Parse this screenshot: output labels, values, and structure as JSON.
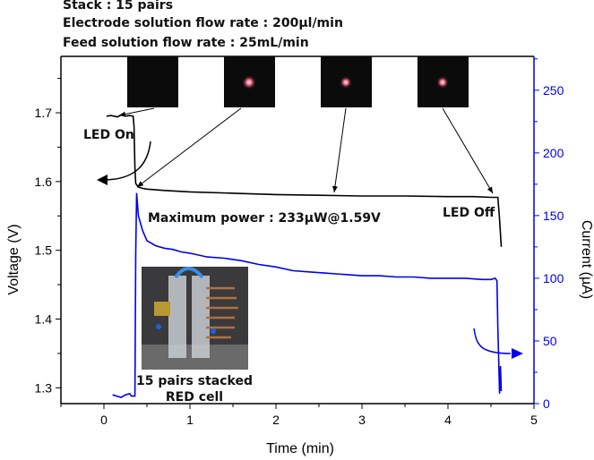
{
  "header": {
    "line1": "Stack : 15 pairs",
    "line2": "Electrode solution flow rate : 200µl/min",
    "line3": "Feed solution flow rate : 25mL/min"
  },
  "chart_data": {
    "type": "line",
    "xlabel": "Time (min)",
    "ylabel": "Voltage (V)",
    "y2label": "Current (µA)",
    "xlim": [
      -0.5,
      5
    ],
    "ylim": [
      1.277,
      1.782
    ],
    "y2lim": [
      0,
      277
    ],
    "xticks": [
      0,
      1,
      2,
      3,
      4,
      5
    ],
    "yticks": [
      1.3,
      1.4,
      1.5,
      1.6,
      1.7
    ],
    "y2ticks": [
      0,
      50,
      100,
      150,
      200,
      250
    ],
    "grid": false,
    "colors": {
      "voltage": "#000000",
      "current": "#0000ee"
    },
    "series": [
      {
        "axis": "left",
        "x": [
          0.03,
          0.08,
          0.12,
          0.16,
          0.2,
          0.25,
          0.3,
          0.34,
          0.35,
          0.36,
          0.37,
          0.4,
          0.45,
          0.5,
          0.7,
          1.0,
          1.5,
          2.0,
          2.5,
          3.0,
          3.5,
          4.0,
          4.3,
          4.5,
          4.58,
          4.6,
          4.62
        ],
        "y": [
          1.695,
          1.696,
          1.695,
          1.694,
          1.697,
          1.695,
          1.696,
          1.695,
          1.68,
          1.62,
          1.597,
          1.592,
          1.59,
          1.589,
          1.587,
          1.585,
          1.583,
          1.581,
          1.58,
          1.579,
          1.579,
          1.578,
          1.578,
          1.577,
          1.577,
          1.545,
          1.505
        ]
      },
      {
        "axis": "right",
        "x": [
          0.1,
          0.15,
          0.2,
          0.25,
          0.3,
          0.32,
          0.36,
          0.37,
          0.38,
          0.4,
          0.45,
          0.5,
          0.6,
          0.7,
          0.8,
          0.9,
          1.0,
          1.2,
          1.4,
          1.6,
          1.8,
          2.0,
          2.2,
          2.4,
          2.6,
          2.8,
          3.0,
          3.2,
          3.4,
          3.6,
          3.8,
          4.0,
          4.2,
          4.4,
          4.5,
          4.55,
          4.57,
          4.58,
          4.6,
          4.61,
          4.62
        ],
        "y": [
          7,
          6,
          5,
          7,
          8,
          6,
          6,
          120,
          168,
          150,
          138,
          130,
          126,
          124,
          123,
          121,
          120,
          117,
          116,
          114,
          111,
          109,
          106,
          105,
          104,
          103,
          102,
          102,
          101,
          101,
          100,
          100,
          100,
          99,
          99,
          100,
          98,
          60,
          8,
          30,
          10
        ]
      }
    ],
    "annotations": {
      "led_on": "LED On",
      "led_off": "LED Off",
      "max_power": "Maximum power : 233µW@1.59V",
      "inset_caption_1": "15 pairs stacked",
      "inset_caption_2": "RED cell"
    }
  }
}
